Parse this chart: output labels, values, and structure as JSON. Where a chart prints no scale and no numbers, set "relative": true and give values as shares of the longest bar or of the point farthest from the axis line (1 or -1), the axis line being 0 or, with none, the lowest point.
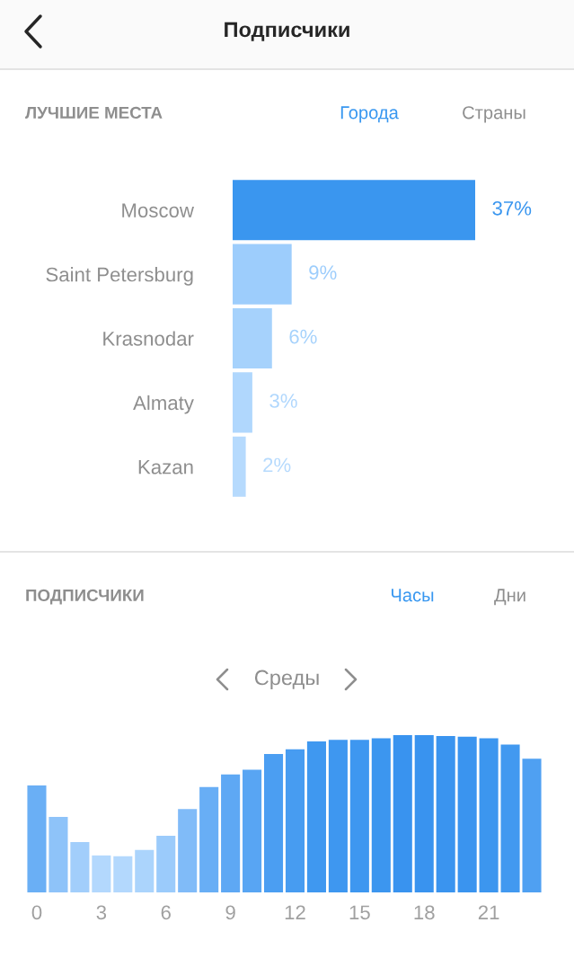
{
  "chart_data": [
    {
      "type": "bar",
      "orientation": "horizontal",
      "title": "ЛУЧШИЕ МЕСТА",
      "annotations": [
        "Подписчики",
        "Города",
        "Страны"
      ],
      "categories": [
        "Moscow",
        "Saint Petersburg",
        "Krasnodar",
        "Almaty",
        "Kazan"
      ],
      "values": [
        37,
        9,
        6,
        3,
        2
      ],
      "colors": [
        "#3a96ef",
        "#9dcdfc",
        "#a6d2fc",
        "#b0d7fd",
        "#b6dafd"
      ],
      "value_labels": [
        "37%",
        "9%",
        "6%",
        "3%",
        "2%"
      ]
    },
    {
      "type": "bar",
      "title": "ПОДПИСЧИКИ",
      "relative": true,
      "annotations": [
        "Часы",
        "Дни",
        "Среды"
      ],
      "categories": [
        "0",
        null,
        null,
        "3",
        null,
        null,
        "6",
        null,
        null,
        "9",
        null,
        null,
        "12",
        null,
        null,
        "15",
        null,
        null,
        "18",
        null,
        null,
        "21",
        null,
        null
      ],
      "values": [
        0.68,
        0.48,
        0.32,
        0.235,
        0.23,
        0.27,
        0.36,
        0.53,
        0.67,
        0.75,
        0.78,
        0.88,
        0.91,
        0.96,
        0.97,
        0.97,
        0.98,
        1,
        1,
        0.995,
        0.99,
        0.98,
        0.94,
        0.85
      ],
      "colors": [
        "#6aaff5",
        "#8ec3f9",
        "#a2cefb",
        "#b3d8fd",
        "#b3d8fd",
        "#abd4fc",
        "#9bcbfb",
        "#80bbf8",
        "#68aef5",
        "#5ea8f4",
        "#58a5f3",
        "#4b9ef2",
        "#479cf1",
        "#3f98f0",
        "#3e97f0",
        "#3e97f0",
        "#3c96ef",
        "#3993ef",
        "#3993ef",
        "#3a94ef",
        "#3a94ef",
        "#3c96ef",
        "#4299f0",
        "#4fa0f2"
      ]
    }
  ]
}
